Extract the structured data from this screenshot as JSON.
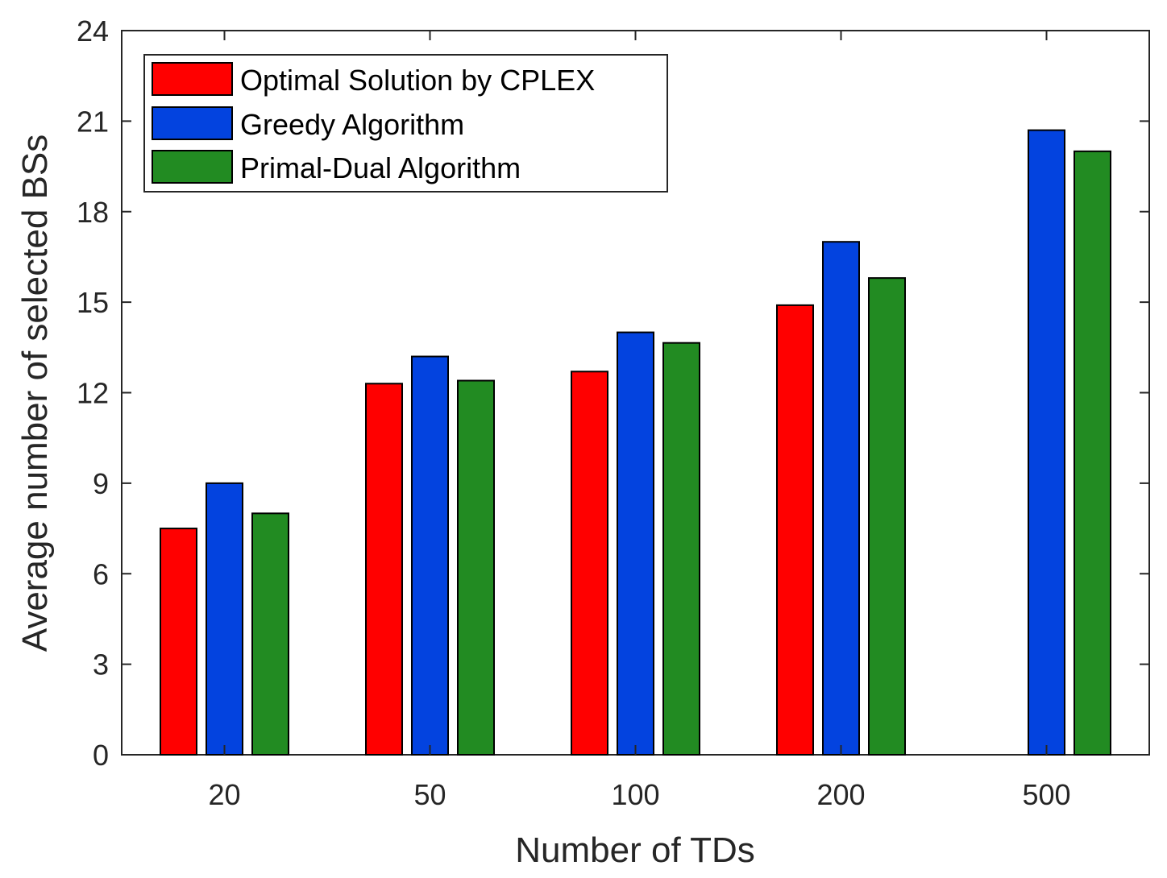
{
  "chart_data": {
    "type": "bar",
    "title": "",
    "xlabel": "Number of TDs",
    "ylabel": "Average number of selected BSs",
    "categories": [
      "20",
      "50",
      "100",
      "200",
      "500"
    ],
    "ylim": [
      0,
      24
    ],
    "yticks": [
      "0",
      "3",
      "6",
      "9",
      "12",
      "15",
      "18",
      "21",
      "24"
    ],
    "grid": false,
    "legend_position": "top-left",
    "series": [
      {
        "name": "Optimal Solution by CPLEX",
        "color": "#ff0000",
        "values": [
          7.5,
          12.3,
          12.7,
          14.9,
          null
        ]
      },
      {
        "name": "Greedy Algorithm",
        "color": "#0343df",
        "values": [
          9.0,
          13.2,
          14.0,
          17.0,
          20.7
        ]
      },
      {
        "name": "Primal-Dual Algorithm",
        "color": "#228b22",
        "values": [
          8.0,
          12.4,
          13.65,
          15.8,
          20.0
        ]
      }
    ]
  }
}
